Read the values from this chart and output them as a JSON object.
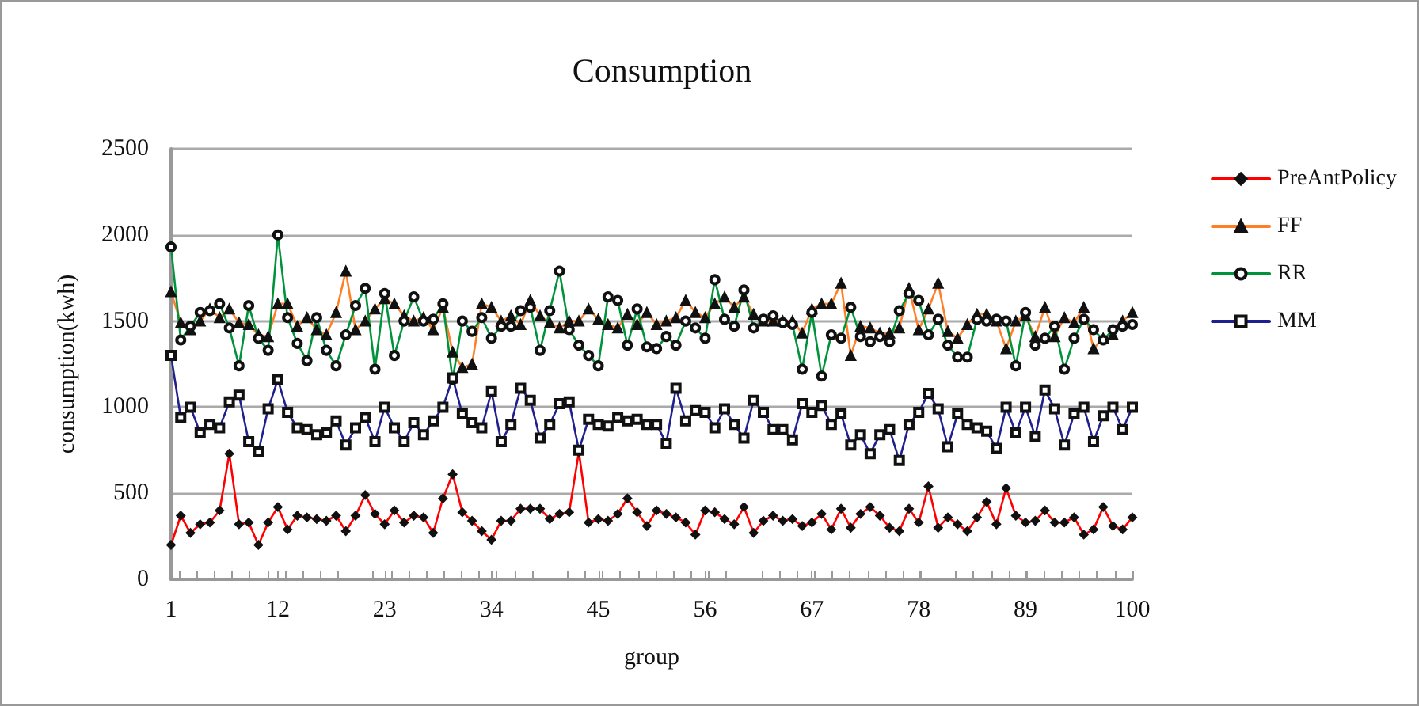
{
  "chart_data": {
    "type": "line",
    "title": "Consumption",
    "xlabel": "group",
    "ylabel": "consumption(kwh)",
    "x": [
      1,
      2,
      3,
      4,
      5,
      6,
      7,
      8,
      9,
      10,
      11,
      12,
      13,
      14,
      15,
      16,
      17,
      18,
      19,
      20,
      21,
      22,
      23,
      24,
      25,
      26,
      27,
      28,
      29,
      30,
      31,
      32,
      33,
      34,
      35,
      36,
      37,
      38,
      39,
      40,
      41,
      42,
      43,
      44,
      45,
      46,
      47,
      48,
      49,
      50,
      51,
      52,
      53,
      54,
      55,
      56,
      57,
      58,
      59,
      60,
      61,
      62,
      63,
      64,
      65,
      66,
      67,
      68,
      69,
      70,
      71,
      72,
      73,
      74,
      75,
      76,
      77,
      78,
      79,
      80,
      81,
      82,
      83,
      84,
      85,
      86,
      87,
      88,
      89,
      90,
      91,
      92,
      93,
      94,
      95,
      96,
      97,
      98,
      99,
      100
    ],
    "xlim": [
      1,
      100
    ],
    "xticks": [
      1,
      12,
      23,
      34,
      45,
      56,
      67,
      78,
      89,
      100
    ],
    "ylim": [
      0,
      2500
    ],
    "yticks": [
      0,
      500,
      1000,
      1500,
      2000,
      2500
    ],
    "grid": "y",
    "legend": "right",
    "series": [
      {
        "name": "PreAntPolicy",
        "color": "#ff0000",
        "marker": "diamond",
        "values": [
          200,
          370,
          270,
          320,
          330,
          400,
          730,
          320,
          330,
          200,
          330,
          420,
          290,
          370,
          360,
          350,
          340,
          370,
          280,
          370,
          490,
          380,
          320,
          400,
          330,
          370,
          360,
          270,
          470,
          610,
          390,
          340,
          280,
          230,
          340,
          340,
          410,
          410,
          410,
          350,
          380,
          390,
          740,
          330,
          350,
          340,
          380,
          470,
          390,
          310,
          400,
          380,
          360,
          330,
          260,
          400,
          390,
          350,
          320,
          420,
          270,
          340,
          370,
          340,
          350,
          310,
          330,
          380,
          290,
          410,
          300,
          380,
          420,
          370,
          300,
          280,
          410,
          330,
          540,
          300,
          360,
          320,
          280,
          360,
          450,
          320,
          530,
          370,
          330,
          340,
          400,
          330,
          330,
          360,
          260,
          290,
          420,
          310,
          290,
          360
        ]
      },
      {
        "name": "FF",
        "color": "#ff7f27",
        "marker": "triangle",
        "values": [
          1670,
          1490,
          1450,
          1500,
          1570,
          1520,
          1570,
          1490,
          1480,
          1420,
          1410,
          1600,
          1600,
          1470,
          1520,
          1450,
          1420,
          1550,
          1790,
          1450,
          1500,
          1570,
          1630,
          1600,
          1530,
          1500,
          1520,
          1450,
          1580,
          1320,
          1230,
          1250,
          1600,
          1580,
          1500,
          1530,
          1480,
          1620,
          1530,
          1490,
          1460,
          1500,
          1500,
          1570,
          1510,
          1480,
          1460,
          1540,
          1480,
          1550,
          1480,
          1500,
          1520,
          1620,
          1550,
          1520,
          1600,
          1640,
          1580,
          1640,
          1540,
          1500,
          1500,
          1500,
          1500,
          1430,
          1570,
          1600,
          1600,
          1720,
          1300,
          1470,
          1460,
          1430,
          1430,
          1460,
          1690,
          1450,
          1570,
          1720,
          1440,
          1400,
          1480,
          1540,
          1540,
          1500,
          1340,
          1500,
          1530,
          1410,
          1580,
          1410,
          1520,
          1490,
          1580,
          1340,
          1400,
          1420,
          1500,
          1550
        ]
      },
      {
        "name": "RR",
        "color": "#00933b",
        "marker": "circle",
        "values": [
          1930,
          1390,
          1470,
          1550,
          1560,
          1600,
          1460,
          1240,
          1590,
          1400,
          1330,
          2000,
          1520,
          1370,
          1270,
          1520,
          1330,
          1240,
          1420,
          1590,
          1690,
          1220,
          1660,
          1300,
          1500,
          1640,
          1500,
          1510,
          1600,
          1160,
          1500,
          1440,
          1520,
          1400,
          1470,
          1470,
          1560,
          1580,
          1330,
          1560,
          1790,
          1450,
          1360,
          1300,
          1240,
          1640,
          1620,
          1360,
          1570,
          1350,
          1340,
          1410,
          1360,
          1500,
          1460,
          1400,
          1740,
          1510,
          1470,
          1680,
          1460,
          1510,
          1530,
          1490,
          1480,
          1220,
          1550,
          1180,
          1420,
          1400,
          1580,
          1410,
          1380,
          1410,
          1380,
          1560,
          1660,
          1620,
          1420,
          1510,
          1360,
          1290,
          1290,
          1510,
          1500,
          1510,
          1500,
          1240,
          1550,
          1360,
          1400,
          1470,
          1220,
          1400,
          1510,
          1450,
          1390,
          1450,
          1470,
          1480
        ]
      },
      {
        "name": "MM",
        "color": "#1f1f8f",
        "marker": "square",
        "values": [
          1300,
          940,
          1000,
          850,
          900,
          880,
          1030,
          1070,
          800,
          740,
          990,
          1160,
          970,
          880,
          870,
          840,
          850,
          920,
          780,
          880,
          940,
          800,
          1000,
          880,
          800,
          910,
          840,
          920,
          1000,
          1170,
          960,
          910,
          880,
          1090,
          800,
          900,
          1110,
          1040,
          820,
          900,
          1020,
          1030,
          750,
          930,
          900,
          890,
          940,
          920,
          930,
          900,
          900,
          790,
          1110,
          920,
          980,
          970,
          880,
          990,
          900,
          820,
          1040,
          970,
          870,
          870,
          810,
          1020,
          970,
          1010,
          900,
          960,
          780,
          840,
          730,
          840,
          870,
          690,
          900,
          970,
          1080,
          990,
          770,
          960,
          900,
          880,
          860,
          760,
          1000,
          850,
          1000,
          830,
          1100,
          990,
          780,
          960,
          1000,
          800,
          950,
          1000,
          870,
          1000
        ]
      }
    ]
  }
}
